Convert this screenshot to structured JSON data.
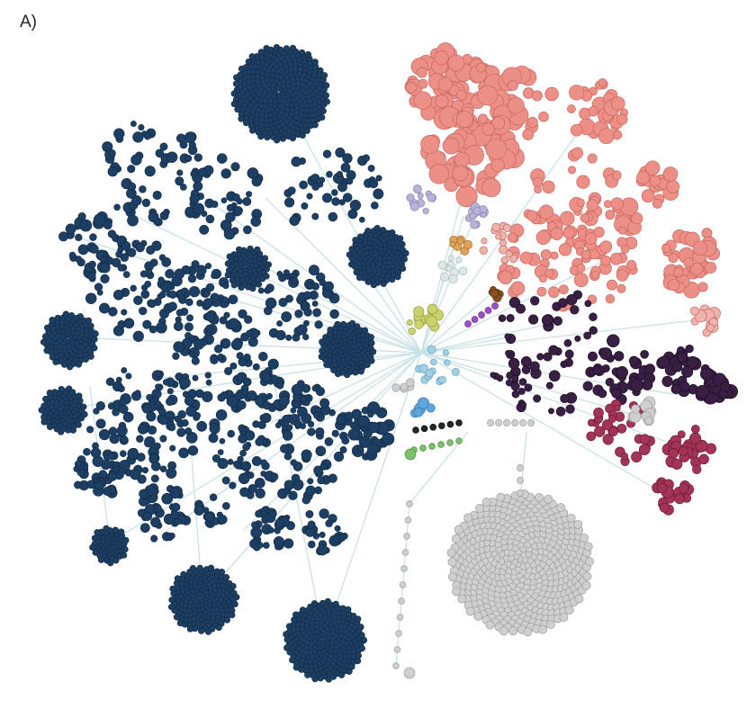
{
  "panel_label": "A)",
  "colors": {
    "navy": "#1d3f63",
    "navy_stroke": "#132c47",
    "salmon": "#ec8f86",
    "salmon_stroke": "#c9665d",
    "pink_light": "#efb3ad",
    "plum": "#3a1f45",
    "magenta": "#a33357",
    "gray": "#cfcfcf",
    "gray_stroke": "#9e9e9e",
    "lavender": "#b9b3d8",
    "orange": "#e1a257",
    "brown": "#8a4f1f",
    "purple": "#9b4fc6",
    "yellow_green": "#c9d26f",
    "light_blue": "#9ed0e6",
    "blue": "#5fa5dc",
    "green": "#7cc26a",
    "dark": "#222a2a",
    "edge": "#c6e0e4"
  }
}
